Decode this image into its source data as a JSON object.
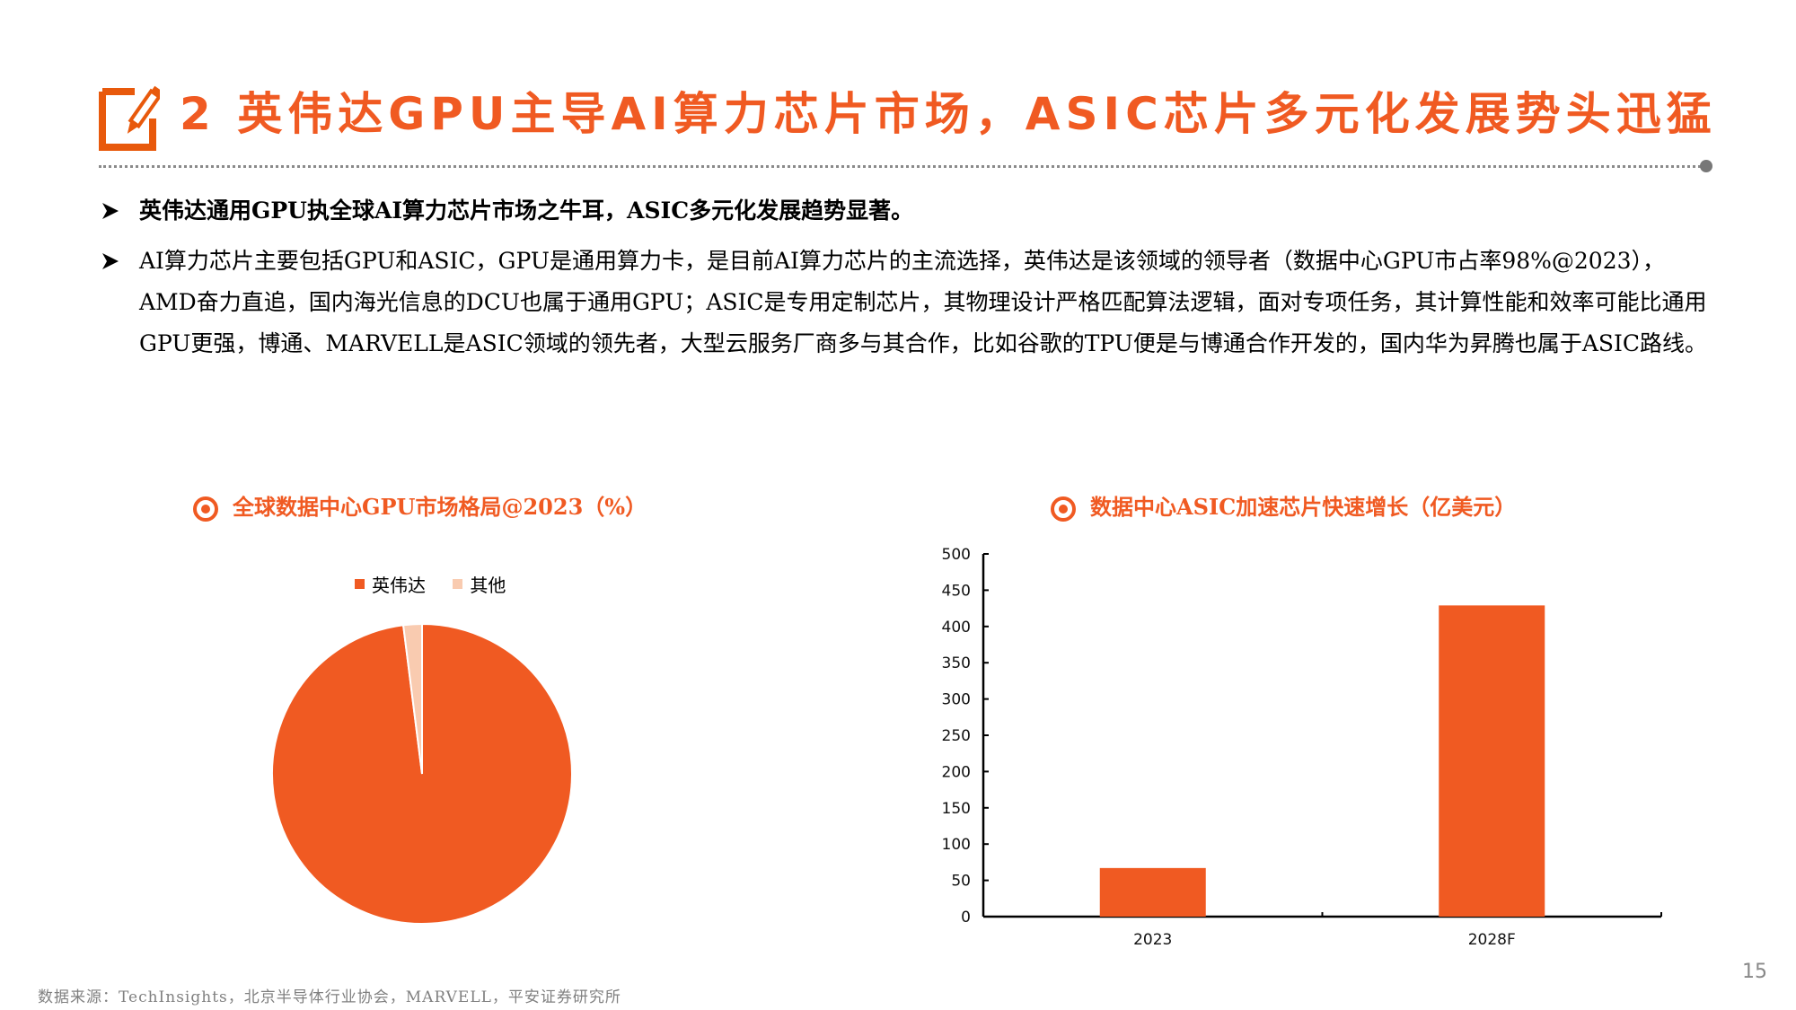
{
  "slide": {
    "title": "2 英伟达GPU主导AI算力芯片市场，ASIC芯片多元化发展势头迅猛",
    "accent_color": "#F05A22",
    "page_number": "15"
  },
  "bullets": [
    {
      "icon": "arrow-bullet-icon",
      "text": "英伟达通用GPU执全球AI算力芯片市场之牛耳，ASIC多元化发展趋势显著。"
    },
    {
      "icon": "arrow-bullet-icon",
      "text": "AI算力芯片主要包括GPU和ASIC，GPU是通用算力卡，是目前AI算力芯片的主流选择，英伟达是该领域的领导者（数据中心GPU市占率98%@2023），AMD奋力直追，国内海光信息的DCU也属于通用GPU；ASIC是专用定制芯片，其物理设计严格匹配算法逻辑，面对专项任务，其计算性能和效率可能比通用GPU更强，博通、MARVELL是ASIC领域的领先者，大型云服务厂商多与其合作，比如谷歌的TPU便是与博通合作开发的，国内华为昇腾也属于ASIC路线。"
    }
  ],
  "charts": {
    "pie": {
      "title": "全球数据中心GPU市场格局@2023（%）"
    },
    "bar": {
      "title": "数据中心ASIC加速芯片快速增长（亿美元）"
    }
  },
  "chart_data": [
    {
      "type": "pie",
      "title": "全球数据中心GPU市场格局@2023（%）",
      "categories": [
        "英伟达",
        "其他"
      ],
      "values": [
        98,
        2
      ],
      "colors": [
        "#F05A22",
        "#F9CBB0"
      ],
      "legend_position": "top"
    },
    {
      "type": "bar",
      "title": "数据中心ASIC加速芯片快速增长（亿美元）",
      "categories": [
        "2023",
        "2028F"
      ],
      "values": [
        67,
        429
      ],
      "color": "#F05A22",
      "xlabel": "",
      "ylabel": "",
      "ylim": [
        0,
        500
      ],
      "yticks": [
        0,
        50,
        100,
        150,
        200,
        250,
        300,
        350,
        400,
        450,
        500
      ],
      "grid": false
    }
  ],
  "footer": {
    "source": "数据来源：TechInsights，北京半导体行业协会，MARVELL，平安证券研究所"
  }
}
